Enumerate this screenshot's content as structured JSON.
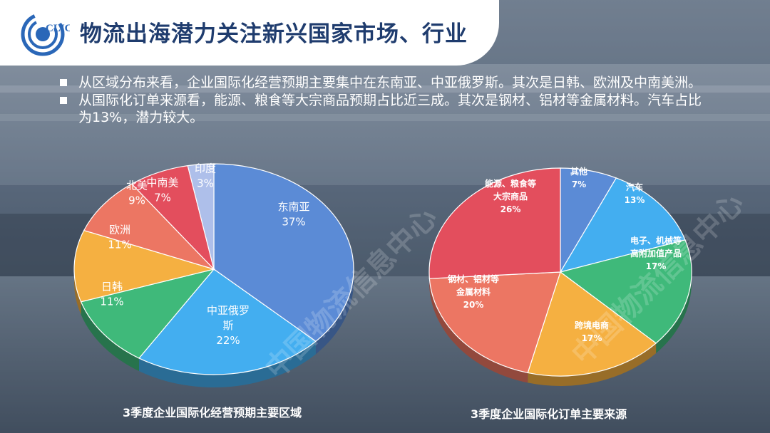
{
  "page": {
    "title": "物流出海潜力关注新兴国家市场、行业",
    "logo_text": "CLIC",
    "watermark": "中国物流信息中心"
  },
  "bullets": [
    "从区域分布来看，企业国际化经营预期主要集中在东南亚、中亚俄罗斯。其次是日韩、欧洲及中南美洲。",
    "从国际化订单来源看，能源、粮食等大宗商品预期占比近三成。其次是钢材、铝材等金属材料。汽车占比为13%，潜力较大。"
  ],
  "colors": {
    "title": "#1f3c6e",
    "blue": "#5b8bd6",
    "light_blue": "#43aef0",
    "green": "#3fb97a",
    "orange": "#f5b041",
    "salmon": "#ec7663",
    "red": "#e34e5d",
    "lavender": "#aebfea"
  },
  "chart_data": [
    {
      "type": "pie",
      "title": "3季度企业国际化经营预期主要区域",
      "slices": [
        {
          "label": "东南亚",
          "value": 37,
          "value_label": "37%",
          "color": "#5b8bd6"
        },
        {
          "label": "中亚俄罗斯",
          "value": 22,
          "value_label": "22%",
          "color": "#43aef0"
        },
        {
          "label": "日韩",
          "value": 11,
          "value_label": "11%",
          "color": "#3fb97a"
        },
        {
          "label": "欧洲",
          "value": 11,
          "value_label": "11%",
          "color": "#f5b041"
        },
        {
          "label": "北美",
          "value": 9,
          "value_label": "9%",
          "color": "#ec7663"
        },
        {
          "label": "中南美",
          "value": 7,
          "value_label": "7%",
          "color": "#e34e5d"
        },
        {
          "label": "印度",
          "value": 3,
          "value_label": "3%",
          "color": "#aebfea"
        }
      ]
    },
    {
      "type": "pie",
      "title": "3季度企业国际化订单主要来源",
      "slices": [
        {
          "label": "其他",
          "value": 7,
          "value_label": "7%",
          "color": "#5b8bd6"
        },
        {
          "label": "汽车",
          "value": 13,
          "value_label": "13%",
          "color": "#43aef0"
        },
        {
          "label": "电子、机械等高附加值产品",
          "value": 17,
          "value_label": "17%",
          "color": "#3fb97a"
        },
        {
          "label": "跨境电商",
          "value": 17,
          "value_label": "17%",
          "color": "#f5b041"
        },
        {
          "label": "钢材、铝材等金属材料",
          "value": 20,
          "value_label": "20%",
          "color": "#ec7663"
        },
        {
          "label": "能源、粮食等大宗商品",
          "value": 26,
          "value_label": "26%",
          "color": "#e34e5d"
        }
      ]
    }
  ]
}
